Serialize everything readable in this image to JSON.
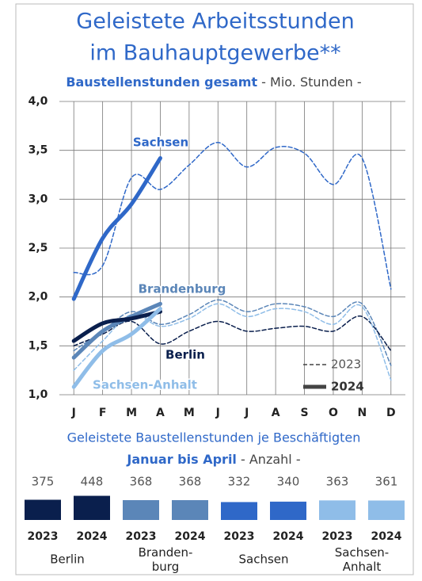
{
  "chart_data": [
    {
      "type": "line",
      "title": [
        "Geleistete Arbeitsstunden",
        "im Bauhauptgewerbe**"
      ],
      "subtitle_bold": "Baustellenstunden gesamt",
      "subtitle": " - Mio. Stunden -",
      "categories": [
        "J",
        "F",
        "M",
        "A",
        "M",
        "J",
        "J",
        "A",
        "S",
        "O",
        "N",
        "D"
      ],
      "ylim": [
        1.0,
        4.0
      ],
      "yticks": [
        {
          "value": 1.0,
          "label": "1,0"
        },
        {
          "value": 1.5,
          "label": "1,5"
        },
        {
          "value": 2.0,
          "label": "2,0"
        },
        {
          "value": 2.5,
          "label": "2,5"
        },
        {
          "value": 3.0,
          "label": "3,0"
        },
        {
          "value": 3.5,
          "label": "3,5"
        },
        {
          "value": 4.0,
          "label": "4,0"
        }
      ],
      "grid": true,
      "legend": [
        {
          "name": "2023",
          "style": "dashed"
        },
        {
          "name": "2024",
          "style": "solid"
        }
      ],
      "series": [
        {
          "name": "Sachsen",
          "color": "#2f68c8",
          "values_2023": [
            2.25,
            2.32,
            3.22,
            3.1,
            3.35,
            3.58,
            3.33,
            3.53,
            3.47,
            3.15,
            3.42,
            2.08
          ],
          "values_2024": [
            1.98,
            2.6,
            2.95,
            3.42,
            null,
            null,
            null,
            null,
            null,
            null,
            null,
            null
          ]
        },
        {
          "name": "Brandenburg",
          "color": "#5b86b8",
          "values_2023": [
            1.45,
            1.65,
            1.85,
            1.72,
            1.82,
            1.97,
            1.85,
            1.93,
            1.9,
            1.8,
            1.93,
            1.3
          ],
          "values_2024": [
            1.38,
            1.65,
            1.8,
            1.93,
            null,
            null,
            null,
            null,
            null,
            null,
            null,
            null
          ]
        },
        {
          "name": "Berlin",
          "color": "#0a1f4d",
          "values_2023": [
            1.5,
            1.62,
            1.75,
            1.52,
            1.65,
            1.75,
            1.65,
            1.68,
            1.7,
            1.65,
            1.8,
            1.45
          ],
          "values_2024": [
            1.55,
            1.73,
            1.78,
            1.85,
            null,
            null,
            null,
            null,
            null,
            null,
            null,
            null
          ]
        },
        {
          "name": "Sachsen-Anhalt",
          "color": "#8fbde8",
          "values_2023": [
            1.25,
            1.55,
            1.82,
            1.7,
            1.78,
            1.93,
            1.8,
            1.88,
            1.85,
            1.72,
            1.9,
            1.15
          ],
          "values_2024": [
            1.08,
            1.45,
            1.62,
            1.88,
            null,
            null,
            null,
            null,
            null,
            null,
            null,
            null
          ]
        }
      ]
    },
    {
      "type": "bar",
      "title": "Geleistete Baustellenstunden je Beschäftigten",
      "subtitle_bold": "Januar bis April",
      "subtitle": " - Anzahl -",
      "groups": [
        {
          "name": "Berlin",
          "color": "#0a1f4d",
          "categories": [
            "2023",
            "2024"
          ],
          "values": [
            375,
            448
          ]
        },
        {
          "name": "Branden-\nburg",
          "color": "#5b86b8",
          "categories": [
            "2023",
            "2024"
          ],
          "values": [
            368,
            368
          ]
        },
        {
          "name": "Sachsen",
          "color": "#2f68c8",
          "categories": [
            "2023",
            "2024"
          ],
          "values": [
            332,
            340
          ]
        },
        {
          "name": "Sachsen-\nAnhalt",
          "color": "#8fbde8",
          "categories": [
            "2023",
            "2024"
          ],
          "values": [
            363,
            361
          ]
        }
      ]
    }
  ]
}
